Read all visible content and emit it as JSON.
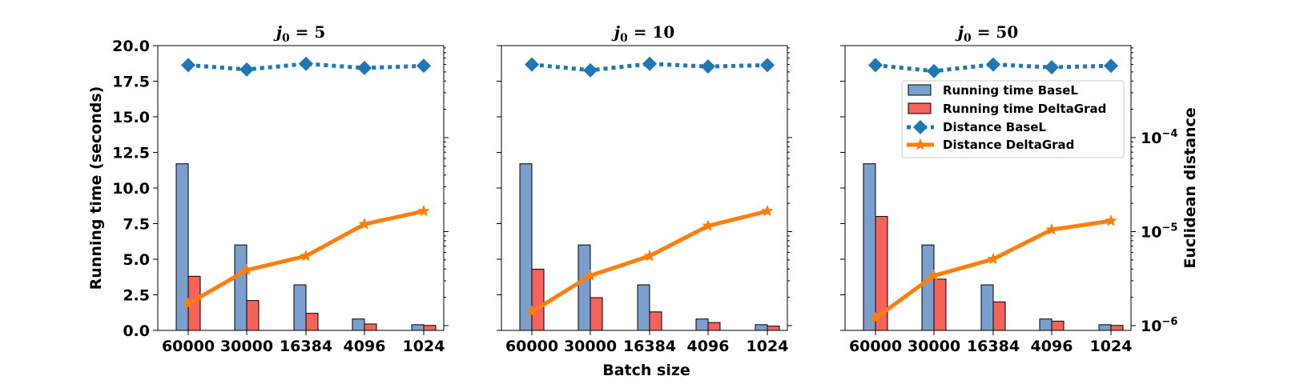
{
  "chart_data": {
    "type": "bar+line",
    "categories": [
      "60000",
      "30000",
      "16384",
      "4096",
      "1024"
    ],
    "xlabel": "Batch size",
    "ylabel_left": "Running time (seconds)",
    "ylabel_right": "Euclidean distance",
    "left_ylim": [
      0,
      20
    ],
    "left_ticks": [
      "0.0",
      "2.5",
      "5.0",
      "7.5",
      "10.0",
      "12.5",
      "15.0",
      "17.5",
      "20.0"
    ],
    "right_scale": "log",
    "right_ticks": [
      {
        "value": 1e-06,
        "base": "10",
        "exp": "−6"
      },
      {
        "value": 1e-05,
        "base": "10",
        "exp": "−5"
      },
      {
        "value": 0.0001,
        "base": "10",
        "exp": "−4"
      }
    ],
    "legend": {
      "placement": "upper-right of third panel",
      "entries": [
        "Running time BaseL",
        "Running time DeltaGrad",
        "Distance BaseL",
        "Distance DeltaGrad"
      ]
    },
    "colors": {
      "bar_basel": "#7a9fcd",
      "bar_deltagrad": "#f4635a",
      "line_basel": "#1f77b4",
      "line_deltagrad": "#ff7f0e"
    },
    "panels": [
      {
        "title_prefix": "j",
        "title_sub": "0",
        "title_suffix": " = 5",
        "running_time_basel": [
          11.7,
          6.0,
          3.2,
          0.8,
          0.4
        ],
        "running_time_deltagrad": [
          3.8,
          2.1,
          1.2,
          0.45,
          0.35
        ],
        "distance_basel": [
          0.00059,
          0.00053,
          0.00061,
          0.00055,
          0.00058
        ],
        "distance_deltagrad": [
          1.7e-06,
          3.9e-06,
          5.5e-06,
          1.2e-05,
          1.65e-05
        ]
      },
      {
        "title_prefix": "j",
        "title_sub": "0",
        "title_suffix": " = 10",
        "running_time_basel": [
          11.7,
          6.0,
          3.2,
          0.8,
          0.4
        ],
        "running_time_deltagrad": [
          4.3,
          2.3,
          1.3,
          0.55,
          0.3
        ],
        "distance_basel": [
          0.0006,
          0.00052,
          0.00061,
          0.00057,
          0.00059
        ],
        "distance_deltagrad": [
          1.4e-06,
          3.4e-06,
          5.5e-06,
          1.15e-05,
          1.65e-05
        ]
      },
      {
        "title_prefix": "j",
        "title_sub": "0",
        "title_suffix": " = 50",
        "running_time_basel": [
          11.7,
          6.0,
          3.2,
          0.8,
          0.4
        ],
        "running_time_deltagrad": [
          8.0,
          3.6,
          2.0,
          0.65,
          0.35
        ],
        "distance_basel": [
          0.00059,
          0.00051,
          0.0006,
          0.00056,
          0.00058
        ],
        "distance_deltagrad": [
          1.2e-06,
          3.4e-06,
          5.1e-06,
          1.05e-05,
          1.3e-05
        ]
      }
    ]
  }
}
